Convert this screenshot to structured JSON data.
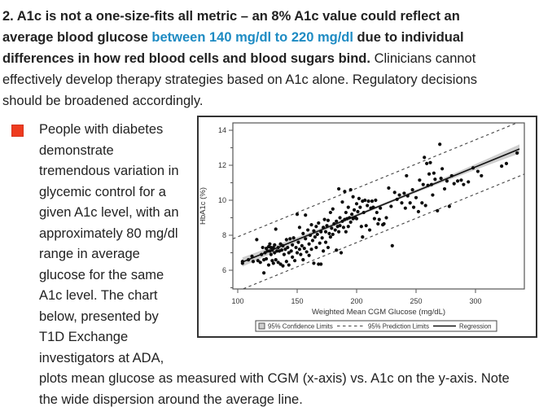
{
  "colors": {
    "text": "#222222",
    "link_blue": "#1e8bc3",
    "bullet_red": "#ee3b1f",
    "chart_border": "#333333",
    "plot_frame": "#555555",
    "confidence_band": "#cfcfcf",
    "regression_line": "#111111",
    "prediction_dash": "#444444",
    "point": "#0d0d0d",
    "chart_text": "#333333"
  },
  "intro": {
    "part1": "2. A1c is not a one-size-fits all metric – an 8% A1c value could reflect an\naverage blood glucose ",
    "link": "between 140 mg/dl to 220 mg/dl",
    "part2": " due to individual\ndifferences in how red blood cells and blood sugars bind.",
    "part3": " Clinicians cannot\neffectively develop therapy strategies based on A1c alone. Regulatory decisions\nshould be broadened accordingly."
  },
  "bullet": {
    "text": "People with diabetes\ndemonstrate\ntremendous variation in\nglycemic control for a\ngiven A1c level, with an\napproximately 80 mg/dl\nrange in average\nglucose for the same\nA1c level. The chart\nbelow, presented by\nT1D Exchange\ninvestigators at ADA,\nplots mean glucose as measured with CGM (x-axis) vs. A1c on the y-axis. Note\nthe wide dispersion around the average line."
  },
  "chart_data": {
    "type": "scatter",
    "title": "",
    "xlabel": "Weighted Mean CGM Glucose (mg/dL)",
    "ylabel": "HbA1c (%)",
    "xlim": [
      95.9,
      341.1
    ],
    "ylim": [
      4.93,
      14.42
    ],
    "xticks": [
      100,
      150,
      200,
      250,
      300
    ],
    "yticks": [
      6,
      8,
      10,
      12,
      14
    ],
    "yticks_minor": [
      5,
      7,
      9,
      11,
      13
    ],
    "grid": false,
    "legend_position": "bottom",
    "legend": [
      "95% Confidence Limits",
      "95% Prediction Limits",
      "Regression"
    ],
    "regression": {
      "slope": 0.02773,
      "intercept": 3.586,
      "x_start": 104,
      "x_end": 337
    },
    "prediction_offset": 1.55,
    "confidence": {
      "base": 0.08,
      "grow": 0.18,
      "center_x": 220.5,
      "span": 116.5
    },
    "points": [
      [
        104,
        6.5
      ],
      [
        104,
        6.4
      ],
      [
        109,
        6.6
      ],
      [
        112,
        6.8
      ],
      [
        113,
        6.5
      ],
      [
        116,
        7.75
      ],
      [
        117,
        6.55
      ],
      [
        119,
        6.45
      ],
      [
        120,
        6.9
      ],
      [
        121,
        7.3
      ],
      [
        122,
        5.85
      ],
      [
        122,
        6.6
      ],
      [
        123,
        7.0
      ],
      [
        124,
        7.25
      ],
      [
        124,
        6.65
      ],
      [
        125,
        7.1
      ],
      [
        126,
        7.35
      ],
      [
        126,
        6.3
      ],
      [
        127,
        7.5
      ],
      [
        127,
        7.1
      ],
      [
        128,
        6.9
      ],
      [
        128,
        7.3
      ],
      [
        129,
        6.55
      ],
      [
        129,
        7.15
      ],
      [
        130,
        7.3
      ],
      [
        130,
        6.4
      ],
      [
        131,
        7.0
      ],
      [
        131,
        7.45
      ],
      [
        132,
        8.35
      ],
      [
        132,
        6.6
      ],
      [
        133,
        7.1
      ],
      [
        134,
        7.3
      ],
      [
        134,
        6.45
      ],
      [
        135,
        7.1
      ],
      [
        136,
        6.35
      ],
      [
        136,
        7.5
      ],
      [
        137,
        7.15
      ],
      [
        138,
        6.25
      ],
      [
        138,
        7.4
      ],
      [
        139,
        6.9
      ],
      [
        140,
        7.2
      ],
      [
        141,
        6.5
      ],
      [
        141,
        7.75
      ],
      [
        142,
        7.3
      ],
      [
        143,
        6.3
      ],
      [
        143,
        7.0
      ],
      [
        144,
        7.8
      ],
      [
        145,
        7.1
      ],
      [
        146,
        6.75
      ],
      [
        146,
        7.45
      ],
      [
        147,
        7.85
      ],
      [
        148,
        6.55
      ],
      [
        149,
        7.3
      ],
      [
        150,
        9.2
      ],
      [
        150,
        7.0
      ],
      [
        151,
        7.6
      ],
      [
        152,
        7.2
      ],
      [
        152,
        8.45
      ],
      [
        153,
        6.9
      ],
      [
        154,
        7.4
      ],
      [
        155,
        8.1
      ],
      [
        155,
        6.6
      ],
      [
        156,
        7.25
      ],
      [
        157,
        7.8
      ],
      [
        157,
        9.15
      ],
      [
        158,
        7.05
      ],
      [
        159,
        8.3
      ],
      [
        160,
        7.5
      ],
      [
        160,
        6.85
      ],
      [
        161,
        8.0
      ],
      [
        162,
        8.6
      ],
      [
        162,
        7.2
      ],
      [
        163,
        7.7
      ],
      [
        164,
        8.25
      ],
      [
        164,
        6.4
      ],
      [
        165,
        7.9
      ],
      [
        166,
        8.5
      ],
      [
        166,
        7.3
      ],
      [
        167,
        8.05
      ],
      [
        168,
        6.35
      ],
      [
        168,
        8.7
      ],
      [
        169,
        7.55
      ],
      [
        170,
        8.2
      ],
      [
        170,
        6.35
      ],
      [
        171,
        7.85
      ],
      [
        172,
        8.45
      ],
      [
        172,
        7.1
      ],
      [
        173,
        8.9
      ],
      [
        174,
        7.6
      ],
      [
        174,
        8.2
      ],
      [
        175,
        8.55
      ],
      [
        176,
        7.3
      ],
      [
        176,
        8.85
      ],
      [
        177,
        8.1
      ],
      [
        178,
        9.3
      ],
      [
        178,
        7.9
      ],
      [
        179,
        8.4
      ],
      [
        180,
        8.05
      ],
      [
        180,
        9.5
      ],
      [
        181,
        8.65
      ],
      [
        182,
        8.3
      ],
      [
        183,
        7.15
      ],
      [
        183,
        8.8
      ],
      [
        184,
        8.5
      ],
      [
        185,
        10.65
      ],
      [
        185,
        8.2
      ],
      [
        186,
        9.0
      ],
      [
        186,
        8.55
      ],
      [
        187,
        7.0
      ],
      [
        188,
        8.8
      ],
      [
        188,
        9.9
      ],
      [
        189,
        8.45
      ],
      [
        190,
        10.5
      ],
      [
        190,
        8.9
      ],
      [
        191,
        8.2
      ],
      [
        191,
        9.3
      ],
      [
        192,
        8.95
      ],
      [
        193,
        8.5
      ],
      [
        193,
        9.6
      ],
      [
        194,
        9.0
      ],
      [
        195,
        10.6
      ],
      [
        195,
        8.75
      ],
      [
        196,
        9.2
      ],
      [
        197,
        8.95
      ],
      [
        197,
        10.2
      ],
      [
        198,
        9.45
      ],
      [
        199,
        9.0
      ],
      [
        200,
        9.8
      ],
      [
        200,
        8.95
      ],
      [
        201,
        9.35
      ],
      [
        202,
        10.1
      ],
      [
        203,
        9.6
      ],
      [
        204,
        8.5
      ],
      [
        205,
        9.95
      ],
      [
        205,
        7.9
      ],
      [
        206,
        9.3
      ],
      [
        207,
        10.0
      ],
      [
        208,
        8.55
      ],
      [
        209,
        9.7
      ],
      [
        210,
        9.95
      ],
      [
        211,
        8.3
      ],
      [
        212,
        9.55
      ],
      [
        213,
        9.95
      ],
      [
        214,
        9.6
      ],
      [
        215,
        8.95
      ],
      [
        216,
        10.0
      ],
      [
        217,
        9.3
      ],
      [
        218,
        8.65
      ],
      [
        219,
        8.9
      ],
      [
        220,
        9.55
      ],
      [
        222,
        8.6
      ],
      [
        223,
        8.65
      ],
      [
        225,
        9.0
      ],
      [
        227,
        10.7
      ],
      [
        229,
        9.65
      ],
      [
        230,
        7.4
      ],
      [
        232,
        10.45
      ],
      [
        234,
        10.05
      ],
      [
        236,
        10.3
      ],
      [
        238,
        9.85
      ],
      [
        240,
        10.4
      ],
      [
        241,
        9.55
      ],
      [
        242,
        11.4
      ],
      [
        243,
        10.25
      ],
      [
        245,
        9.85
      ],
      [
        247,
        10.6
      ],
      [
        248,
        9.6
      ],
      [
        250,
        10.15
      ],
      [
        252,
        9.35
      ],
      [
        253,
        11.15
      ],
      [
        255,
        9.85
      ],
      [
        256,
        10.9
      ],
      [
        257,
        12.45
      ],
      [
        258,
        9.7
      ],
      [
        259,
        12.1
      ],
      [
        260,
        10.85
      ],
      [
        261,
        11.5
      ],
      [
        262,
        12.15
      ],
      [
        263,
        10.9
      ],
      [
        264,
        10.3
      ],
      [
        265,
        11.55
      ],
      [
        266,
        11.2
      ],
      [
        268,
        9.4
      ],
      [
        270,
        13.2
      ],
      [
        271,
        11.25
      ],
      [
        272,
        11.8
      ],
      [
        274,
        10.65
      ],
      [
        276,
        11.1
      ],
      [
        278,
        9.65
      ],
      [
        280,
        11.4
      ],
      [
        282,
        10.95
      ],
      [
        285,
        11.1
      ],
      [
        288,
        11.15
      ],
      [
        290,
        10.9
      ],
      [
        294,
        11.05
      ],
      [
        298,
        11.85
      ],
      [
        302,
        11.65
      ],
      [
        305,
        11.4
      ],
      [
        322,
        11.95
      ],
      [
        326,
        12.1
      ],
      [
        335,
        12.7
      ]
    ]
  }
}
